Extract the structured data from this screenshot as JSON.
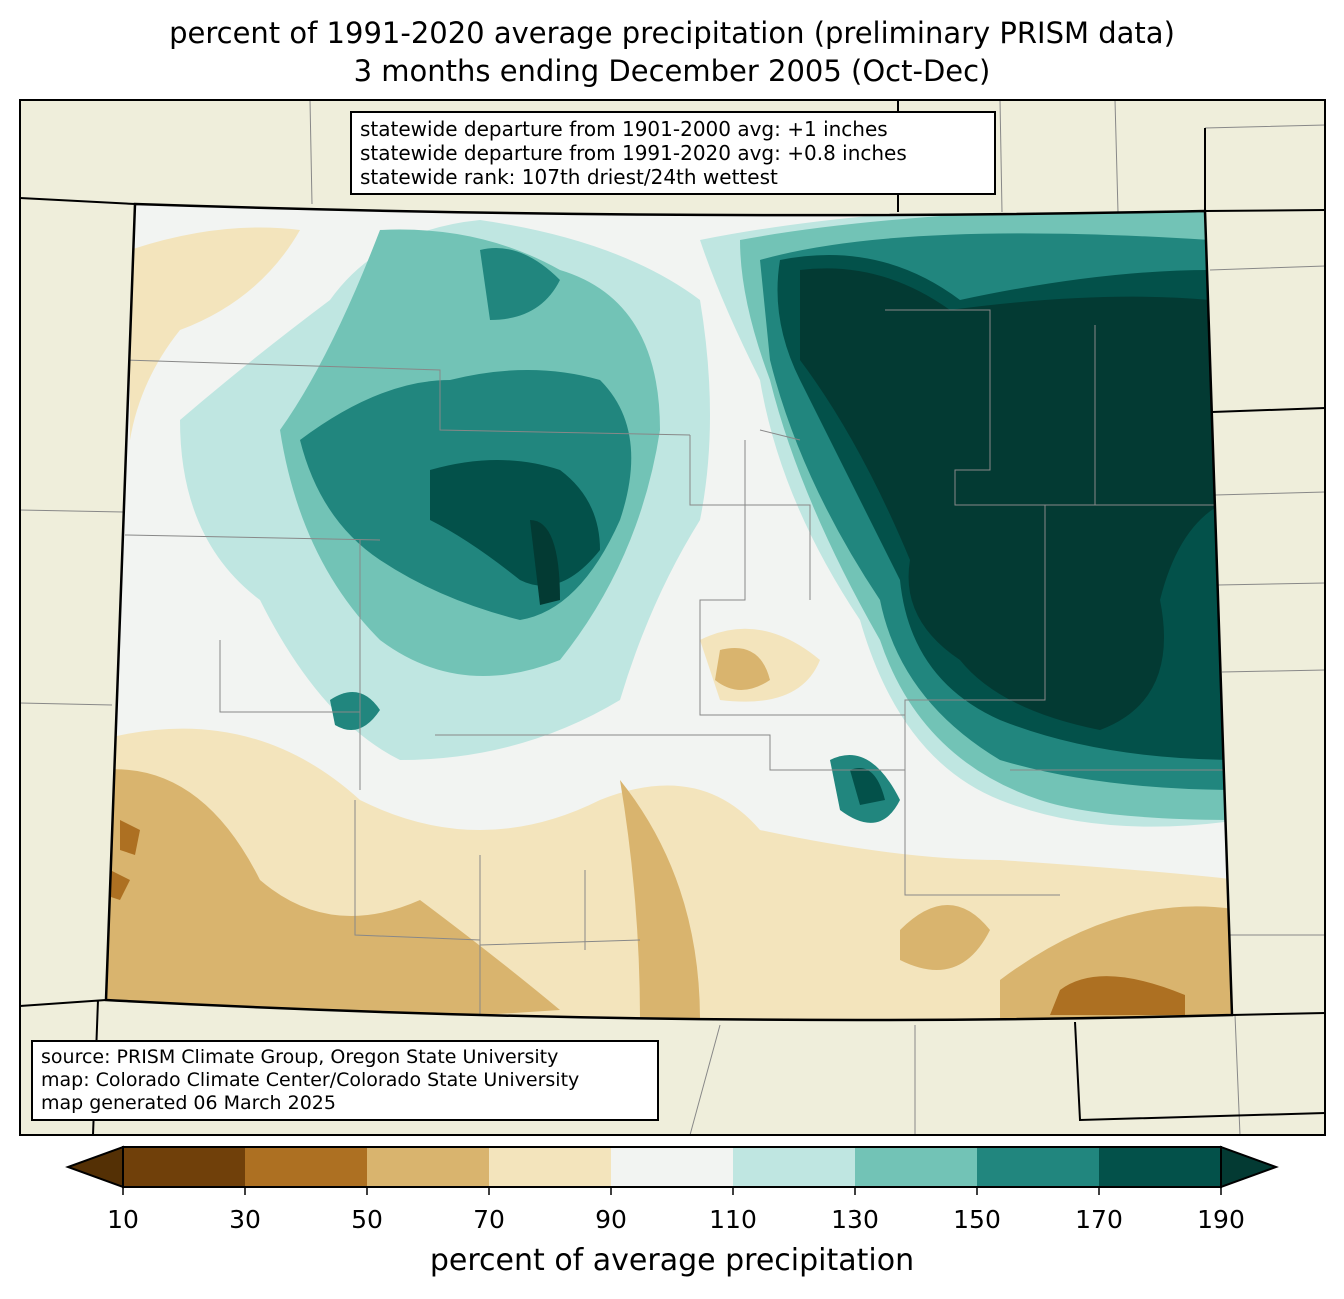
{
  "title": {
    "line1": "percent of 1991-2020 average precipitation (preliminary PRISM data)",
    "line2": "3 months ending December 2005 (Oct-Dec)"
  },
  "stats": [
    "statewide departure from 1901-2000 avg: +1 inches",
    "statewide departure from 1991-2020 avg: +0.8 inches",
    "statewide rank: 107th driest/24th wettest"
  ],
  "source": [
    "source: PRISM Climate Group, Oregon State University",
    "map: Colorado Climate Center/Colorado State University",
    "map generated 06 March 2025"
  ],
  "colorbar": {
    "label": "percent of average precipitation",
    "ticks": [
      "10",
      "30",
      "50",
      "70",
      "90",
      "110",
      "130",
      "150",
      "170",
      "190"
    ],
    "under_color": "#543005",
    "over_color": "#033a33",
    "colors": [
      "#70400a",
      "#ad7022",
      "#d9b46e",
      "#f3e4bc",
      "#f2f4f2",
      "#bfe6e1",
      "#72c3b6",
      "#21867e",
      "#03514a"
    ]
  },
  "background_color": "#efeedb"
}
